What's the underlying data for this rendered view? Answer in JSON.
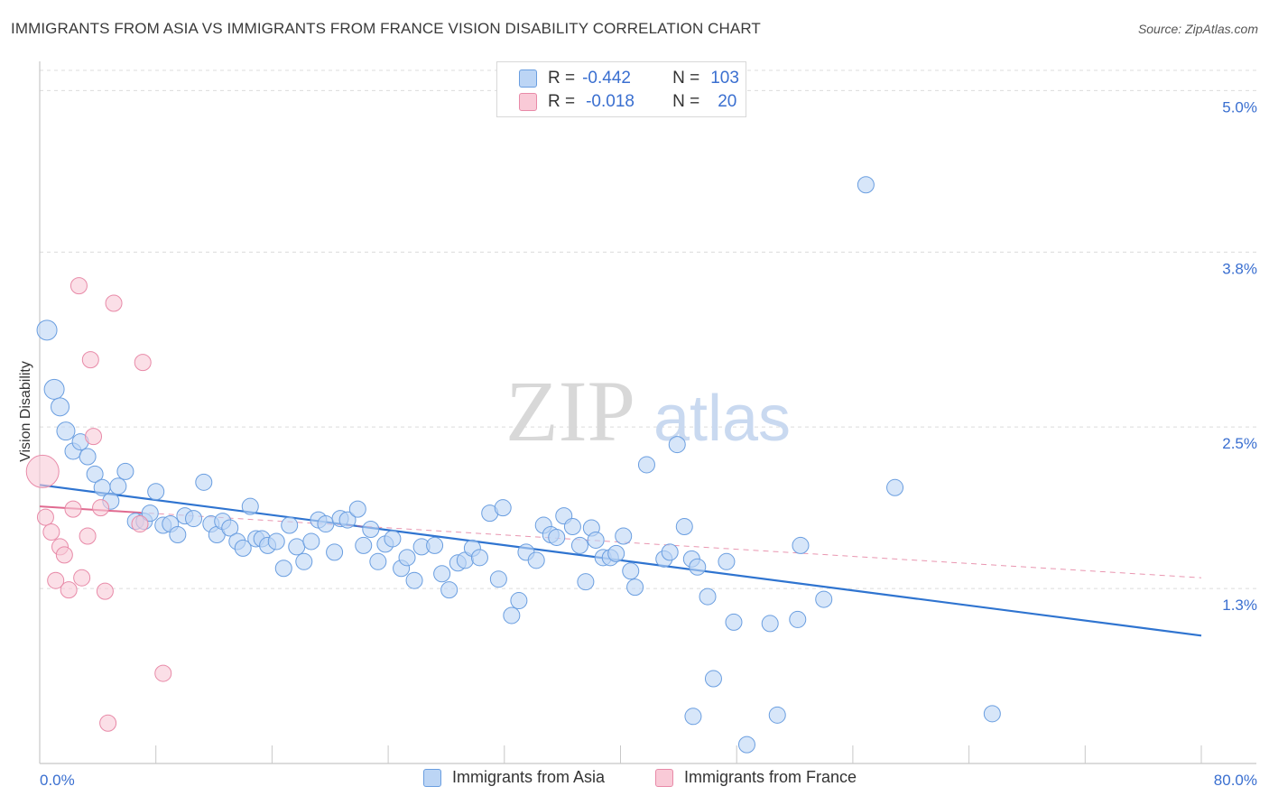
{
  "title": "IMMIGRANTS FROM ASIA VS IMMIGRANTS FROM FRANCE VISION DISABILITY CORRELATION CHART",
  "source": "Source: ZipAtlas.com",
  "watermark": {
    "zip": "ZIP",
    "atlas": "atlas"
  },
  "legend_top": [
    {
      "r_label": "R =",
      "r_value": "-0.442",
      "n_label": "N =",
      "n_value": "103",
      "color": "#a9c8f0",
      "border": "#6a9ee0"
    },
    {
      "r_label": "R =",
      "r_value": "-0.018",
      "n_label": "N =",
      "n_value": "20",
      "color": "#f7c0d0",
      "border": "#e88aa8"
    }
  ],
  "legend_bottom": [
    {
      "label": "Immigrants from Asia",
      "color": "#bcd5f5",
      "border": "#6a9ee0"
    },
    {
      "label": "Immigrants from France",
      "color": "#f9cad7",
      "border": "#e88aa8"
    }
  ],
  "chart_data": {
    "type": "scatter",
    "title": "IMMIGRANTS FROM ASIA VS IMMIGRANTS FROM FRANCE VISION DISABILITY CORRELATION CHART",
    "ylabel": "Vision Disability",
    "xlabel": "",
    "xlim": [
      0,
      80
    ],
    "ylim": [
      0,
      5.15
    ],
    "x_tick_labels": [
      "0.0%",
      "80.0%"
    ],
    "y_ticks": [
      {
        "value": 1.3,
        "label": "1.3%"
      },
      {
        "value": 2.5,
        "label": "2.5%"
      },
      {
        "value": 3.8,
        "label": "3.8%"
      },
      {
        "value": 5.0,
        "label": "5.0%"
      }
    ],
    "grid": true,
    "series": [
      {
        "name": "Immigrants from Asia",
        "color": "#bcd5f5",
        "stroke": "#6a9ee0",
        "trend": {
          "x0": 0,
          "y0": 2.07,
          "x1": 80,
          "y1": 0.95,
          "color": "#2f74d0",
          "dashed": false
        },
        "points": [
          [
            0.5,
            3.22,
            11
          ],
          [
            1.0,
            2.78,
            11
          ],
          [
            1.4,
            2.65,
            10
          ],
          [
            1.8,
            2.47,
            10
          ],
          [
            2.3,
            2.32,
            9
          ],
          [
            2.8,
            2.39,
            9
          ],
          [
            3.3,
            2.28,
            9
          ],
          [
            3.8,
            2.15,
            9
          ],
          [
            4.3,
            2.05,
            9
          ],
          [
            4.9,
            1.95,
            9
          ],
          [
            5.4,
            2.06,
            9
          ],
          [
            5.9,
            2.17,
            9
          ],
          [
            6.6,
            1.8,
            9
          ],
          [
            7.2,
            1.8,
            9
          ],
          [
            7.6,
            1.86,
            9
          ],
          [
            8.0,
            2.02,
            9
          ],
          [
            8.5,
            1.77,
            9
          ],
          [
            9.0,
            1.78,
            9
          ],
          [
            9.5,
            1.7,
            9
          ],
          [
            10.0,
            1.84,
            9
          ],
          [
            10.6,
            1.82,
            9
          ],
          [
            11.3,
            2.09,
            9
          ],
          [
            11.8,
            1.78,
            9
          ],
          [
            12.2,
            1.7,
            9
          ],
          [
            12.6,
            1.8,
            9
          ],
          [
            13.1,
            1.75,
            9
          ],
          [
            13.6,
            1.65,
            9
          ],
          [
            14.0,
            1.6,
            9
          ],
          [
            14.5,
            1.91,
            9
          ],
          [
            14.9,
            1.67,
            9
          ],
          [
            15.3,
            1.67,
            9
          ],
          [
            15.7,
            1.62,
            9
          ],
          [
            16.3,
            1.65,
            9
          ],
          [
            16.8,
            1.45,
            9
          ],
          [
            17.2,
            1.77,
            9
          ],
          [
            17.7,
            1.61,
            9
          ],
          [
            18.2,
            1.5,
            9
          ],
          [
            18.7,
            1.65,
            9
          ],
          [
            19.2,
            1.81,
            9
          ],
          [
            19.7,
            1.78,
            9
          ],
          [
            20.3,
            1.57,
            9
          ],
          [
            20.7,
            1.82,
            9
          ],
          [
            21.2,
            1.81,
            9
          ],
          [
            21.9,
            1.89,
            9
          ],
          [
            22.3,
            1.62,
            9
          ],
          [
            22.8,
            1.74,
            9
          ],
          [
            23.3,
            1.5,
            9
          ],
          [
            23.8,
            1.63,
            9
          ],
          [
            24.3,
            1.67,
            9
          ],
          [
            24.9,
            1.45,
            9
          ],
          [
            25.3,
            1.53,
            9
          ],
          [
            25.8,
            1.36,
            9
          ],
          [
            26.3,
            1.61,
            9
          ],
          [
            27.2,
            1.62,
            9
          ],
          [
            27.7,
            1.41,
            9
          ],
          [
            28.2,
            1.29,
            9
          ],
          [
            28.8,
            1.49,
            9
          ],
          [
            29.3,
            1.51,
            9
          ],
          [
            29.8,
            1.6,
            9
          ],
          [
            30.3,
            1.53,
            9
          ],
          [
            31.0,
            1.86,
            9
          ],
          [
            31.6,
            1.37,
            9
          ],
          [
            31.9,
            1.9,
            9
          ],
          [
            32.5,
            1.1,
            9
          ],
          [
            33.0,
            1.21,
            9
          ],
          [
            33.5,
            1.57,
            9
          ],
          [
            34.2,
            1.51,
            9
          ],
          [
            34.7,
            1.77,
            9
          ],
          [
            35.2,
            1.7,
            9
          ],
          [
            35.6,
            1.68,
            9
          ],
          [
            36.1,
            1.84,
            9
          ],
          [
            36.7,
            1.76,
            9
          ],
          [
            37.2,
            1.62,
            9
          ],
          [
            37.6,
            1.35,
            9
          ],
          [
            38.0,
            1.75,
            9
          ],
          [
            38.3,
            1.66,
            9
          ],
          [
            38.8,
            1.53,
            9
          ],
          [
            39.3,
            1.53,
            9
          ],
          [
            39.7,
            1.56,
            9
          ],
          [
            40.2,
            1.69,
            9
          ],
          [
            40.7,
            1.43,
            9
          ],
          [
            41.0,
            1.31,
            9
          ],
          [
            41.8,
            2.22,
            9
          ],
          [
            43.0,
            1.52,
            9
          ],
          [
            43.4,
            1.57,
            9
          ],
          [
            43.9,
            2.37,
            9
          ],
          [
            44.4,
            1.76,
            9
          ],
          [
            44.9,
            1.52,
            9
          ],
          [
            45.3,
            1.46,
            9
          ],
          [
            46.0,
            1.24,
            9
          ],
          [
            46.4,
            0.63,
            9
          ],
          [
            47.3,
            1.5,
            9
          ],
          [
            47.8,
            1.05,
            9
          ],
          [
            48.7,
            0.14,
            9
          ],
          [
            50.3,
            1.04,
            9
          ],
          [
            50.8,
            0.36,
            9
          ],
          [
            52.2,
            1.07,
            9
          ],
          [
            52.4,
            1.62,
            9
          ],
          [
            54.0,
            1.22,
            9
          ],
          [
            56.9,
            4.3,
            9
          ],
          [
            58.9,
            2.05,
            9
          ],
          [
            65.6,
            0.37,
            9
          ],
          [
            45.0,
            0.35,
            9
          ]
        ]
      },
      {
        "name": "Immigrants from France",
        "color": "#f9cad7",
        "stroke": "#e88aa8",
        "trend": {
          "x0": 0,
          "y0": 1.91,
          "x1": 80,
          "y1": 1.38,
          "color": "#e06a90",
          "dashed": true,
          "solid_until": 7
        },
        "points": [
          [
            0.2,
            2.17,
            18
          ],
          [
            0.4,
            1.83,
            9
          ],
          [
            0.8,
            1.72,
            9
          ],
          [
            1.1,
            1.36,
            9
          ],
          [
            1.4,
            1.61,
            9
          ],
          [
            1.7,
            1.55,
            9
          ],
          [
            2.0,
            1.29,
            9
          ],
          [
            2.3,
            1.89,
            9
          ],
          [
            2.7,
            3.55,
            9
          ],
          [
            2.9,
            1.38,
            9
          ],
          [
            3.3,
            1.69,
            9
          ],
          [
            3.5,
            3.0,
            9
          ],
          [
            3.7,
            2.43,
            9
          ],
          [
            4.2,
            1.9,
            9
          ],
          [
            4.5,
            1.28,
            9
          ],
          [
            4.7,
            0.3,
            9
          ],
          [
            5.1,
            3.42,
            9
          ],
          [
            6.9,
            1.78,
            9
          ],
          [
            7.1,
            2.98,
            9
          ],
          [
            8.5,
            0.67,
            9
          ]
        ]
      }
    ]
  }
}
